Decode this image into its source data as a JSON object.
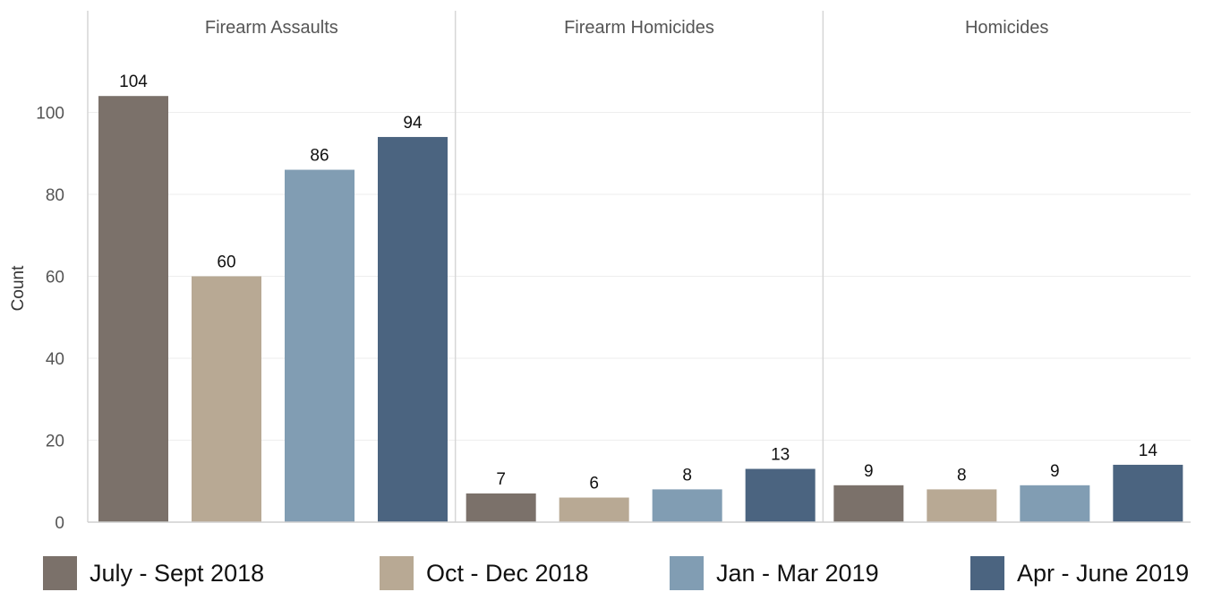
{
  "chart_data": {
    "type": "bar",
    "ylabel": "Count",
    "xlabel": "",
    "ylim": [
      0,
      117
    ],
    "yticks": [
      0,
      20,
      40,
      60,
      80,
      100
    ],
    "grid": true,
    "legend_position": "bottom",
    "facets": [
      "Firearm Assaults",
      "Firearm Homicides",
      "Homicides"
    ],
    "series": [
      {
        "name": "July - Sept 2018",
        "color": "#7b716a",
        "values": [
          104,
          7,
          9
        ]
      },
      {
        "name": "Oct - Dec 2018",
        "color": "#b8a994",
        "values": [
          60,
          6,
          8
        ]
      },
      {
        "name": "Jan - Mar 2019",
        "color": "#819db3",
        "values": [
          86,
          8,
          9
        ]
      },
      {
        "name": "Apr - June 2019",
        "color": "#4b6480",
        "values": [
          94,
          13,
          14
        ]
      }
    ]
  }
}
